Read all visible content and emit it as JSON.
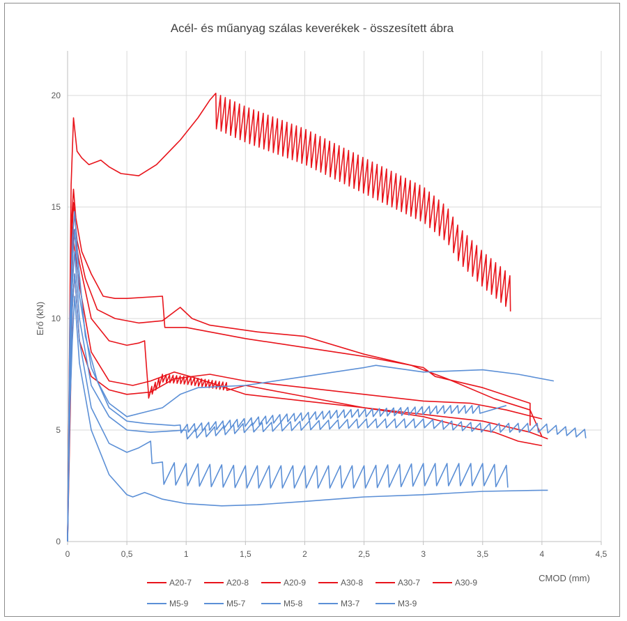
{
  "chart_data": {
    "type": "line",
    "title": "Acél- és műanyag szálas keverékek - összesített ábra",
    "xlabel": "CMOD (mm)",
    "ylabel": "Erő (kN)",
    "xlim": [
      0,
      4.5
    ],
    "ylim": [
      0,
      22
    ],
    "x_ticks": [
      "0",
      "0,5",
      "1",
      "1,5",
      "2",
      "2,5",
      "3",
      "3,5",
      "4",
      "4,5"
    ],
    "x_tick_values": [
      0,
      0.5,
      1,
      1.5,
      2,
      2.5,
      3,
      3.5,
      4,
      4.5
    ],
    "y_ticks": [
      "0",
      "5",
      "10",
      "15",
      "20"
    ],
    "y_tick_values": [
      0,
      5,
      10,
      15,
      20
    ],
    "grid": true,
    "legend_position": "bottom",
    "colors": {
      "steel": "#e8141b",
      "plastic": "#5b8fd6"
    },
    "series": [
      {
        "name": "A20-7",
        "color": "#e8141b",
        "saw": {
          "from": 1.25,
          "to": 3.75,
          "step": 0.04,
          "drop": 1.6
        },
        "points": [
          [
            0,
            0
          ],
          [
            0.03,
            16
          ],
          [
            0.05,
            19
          ],
          [
            0.08,
            17.5
          ],
          [
            0.12,
            17.2
          ],
          [
            0.18,
            16.9
          ],
          [
            0.28,
            17.1
          ],
          [
            0.35,
            16.8
          ],
          [
            0.45,
            16.5
          ],
          [
            0.6,
            16.4
          ],
          [
            0.75,
            16.9
          ],
          [
            0.95,
            18
          ],
          [
            1.1,
            19
          ],
          [
            1.2,
            19.8
          ],
          [
            1.25,
            20.1
          ],
          [
            1.5,
            19.5
          ],
          [
            2,
            18.5
          ],
          [
            2.5,
            17.2
          ],
          [
            3,
            15.9
          ],
          [
            3.2,
            15
          ],
          [
            3.3,
            14.1
          ],
          [
            3.5,
            13
          ],
          [
            3.7,
            12.1
          ],
          [
            3.75,
            11.8
          ]
        ]
      },
      {
        "name": "A20-8",
        "color": "#e8141b",
        "points": [
          [
            0,
            0
          ],
          [
            0.03,
            14
          ],
          [
            0.05,
            15.8
          ],
          [
            0.07,
            14.5
          ],
          [
            0.12,
            13
          ],
          [
            0.2,
            12
          ],
          [
            0.3,
            11
          ],
          [
            0.4,
            10.9
          ],
          [
            0.5,
            10.9
          ],
          [
            0.8,
            11
          ],
          [
            0.82,
            9.6
          ],
          [
            1,
            9.6
          ],
          [
            1.5,
            9.1
          ],
          [
            2,
            8.7
          ],
          [
            2.5,
            8.3
          ],
          [
            3,
            7.8
          ],
          [
            3.1,
            7.4
          ],
          [
            3.5,
            6.9
          ],
          [
            3.9,
            6.2
          ],
          [
            3.9,
            5.2
          ]
        ]
      },
      {
        "name": "A20-9",
        "color": "#e8141b",
        "points": [
          [
            0,
            0
          ],
          [
            0.03,
            13
          ],
          [
            0.05,
            15.2
          ],
          [
            0.08,
            13.5
          ],
          [
            0.15,
            11.8
          ],
          [
            0.25,
            10.4
          ],
          [
            0.4,
            10
          ],
          [
            0.6,
            9.8
          ],
          [
            0.8,
            9.9
          ],
          [
            0.95,
            10.5
          ],
          [
            1.05,
            10
          ],
          [
            1.2,
            9.7
          ],
          [
            1.6,
            9.4
          ],
          [
            2,
            9.2
          ],
          [
            2.5,
            8.4
          ],
          [
            2.9,
            7.9
          ],
          [
            3.2,
            7.3
          ],
          [
            3.6,
            6.4
          ],
          [
            3.9,
            5.9
          ],
          [
            4,
            4.7
          ]
        ]
      },
      {
        "name": "A30-8",
        "color": "#e8141b",
        "saw": {
          "from": 0.65,
          "to": 1.35,
          "step": 0.03,
          "drop": 0.35
        },
        "points": [
          [
            0,
            0
          ],
          [
            0.03,
            12
          ],
          [
            0.05,
            14
          ],
          [
            0.1,
            12.5
          ],
          [
            0.2,
            10
          ],
          [
            0.35,
            9
          ],
          [
            0.5,
            8.8
          ],
          [
            0.6,
            8.9
          ],
          [
            0.65,
            9
          ],
          [
            0.65,
            6.6
          ],
          [
            0.8,
            7.5
          ],
          [
            1,
            7.4
          ],
          [
            1.5,
            7
          ],
          [
            2,
            6.5
          ],
          [
            2.5,
            6
          ],
          [
            3,
            5.6
          ],
          [
            3.3,
            5.2
          ],
          [
            3.6,
            4.9
          ],
          [
            3.8,
            4.5
          ],
          [
            4,
            4.3
          ]
        ]
      },
      {
        "name": "A30-7",
        "color": "#e8141b",
        "points": [
          [
            0,
            0
          ],
          [
            0.03,
            11
          ],
          [
            0.05,
            13.5
          ],
          [
            0.1,
            11.5
          ],
          [
            0.2,
            8.5
          ],
          [
            0.35,
            7.2
          ],
          [
            0.55,
            7
          ],
          [
            0.7,
            7.2
          ],
          [
            0.9,
            7.6
          ],
          [
            1.1,
            7.3
          ],
          [
            1.5,
            6.6
          ],
          [
            2,
            6.3
          ],
          [
            2.5,
            6
          ],
          [
            3,
            5.7
          ],
          [
            3.5,
            5.4
          ],
          [
            3.9,
            4.9
          ],
          [
            4.05,
            4.6
          ]
        ]
      },
      {
        "name": "A30-9",
        "color": "#e8141b",
        "points": [
          [
            0,
            0
          ],
          [
            0.04,
            10.5
          ],
          [
            0.06,
            12
          ],
          [
            0.1,
            9
          ],
          [
            0.2,
            7.4
          ],
          [
            0.35,
            6.8
          ],
          [
            0.5,
            6.6
          ],
          [
            0.7,
            6.7
          ],
          [
            0.9,
            7.3
          ],
          [
            1.2,
            7.5
          ],
          [
            1.5,
            7.2
          ],
          [
            2,
            6.9
          ],
          [
            2.5,
            6.6
          ],
          [
            3,
            6.3
          ],
          [
            3.4,
            6.2
          ],
          [
            3.7,
            5.9
          ],
          [
            4,
            5.5
          ]
        ]
      },
      {
        "name": "M5-9",
        "color": "#5b8fd6",
        "points": [
          [
            0,
            0
          ],
          [
            0.02,
            10
          ],
          [
            0.04,
            13.5
          ],
          [
            0.06,
            14.8
          ],
          [
            0.09,
            12.5
          ],
          [
            0.15,
            9.2
          ],
          [
            0.25,
            7.2
          ],
          [
            0.35,
            6.2
          ],
          [
            0.5,
            5.6
          ],
          [
            0.65,
            5.8
          ],
          [
            0.8,
            6
          ],
          [
            0.95,
            6.6
          ],
          [
            1.1,
            6.9
          ],
          [
            1.5,
            7
          ],
          [
            2,
            7.4
          ],
          [
            2.5,
            7.8
          ],
          [
            2.6,
            7.9
          ],
          [
            3,
            7.6
          ],
          [
            3.5,
            7.7
          ],
          [
            3.8,
            7.5
          ],
          [
            4.1,
            7.2
          ]
        ]
      },
      {
        "name": "M5-7",
        "color": "#5b8fd6",
        "saw": {
          "from": 0.95,
          "to": 3.5,
          "step": 0.06,
          "drop": 0.35
        },
        "points": [
          [
            0,
            0
          ],
          [
            0.02,
            9
          ],
          [
            0.04,
            12.5
          ],
          [
            0.06,
            14
          ],
          [
            0.1,
            11
          ],
          [
            0.2,
            7.8
          ],
          [
            0.35,
            6
          ],
          [
            0.5,
            5.4
          ],
          [
            0.65,
            5.3
          ],
          [
            0.9,
            5.2
          ],
          [
            1.3,
            5.4
          ],
          [
            1.8,
            5.7
          ],
          [
            2.3,
            5.9
          ],
          [
            2.8,
            6
          ],
          [
            3.2,
            6.1
          ],
          [
            3.7,
            6.1
          ]
        ]
      },
      {
        "name": "M5-8",
        "color": "#5b8fd6",
        "saw": {
          "from": 1.0,
          "to": 4.4,
          "step": 0.08,
          "drop": 0.4
        },
        "points": [
          [
            0,
            0
          ],
          [
            0.02,
            8
          ],
          [
            0.04,
            11.5
          ],
          [
            0.06,
            13
          ],
          [
            0.1,
            10
          ],
          [
            0.2,
            7
          ],
          [
            0.35,
            5.6
          ],
          [
            0.5,
            5
          ],
          [
            0.7,
            4.9
          ],
          [
            1,
            5
          ],
          [
            1.5,
            5.3
          ],
          [
            2,
            5.4
          ],
          [
            2.5,
            5.5
          ],
          [
            3,
            5.5
          ],
          [
            3.5,
            5.3
          ],
          [
            4,
            5.3
          ],
          [
            4.4,
            5
          ]
        ]
      },
      {
        "name": "M3-7",
        "color": "#5b8fd6",
        "saw": {
          "from": 0.7,
          "to": 3.75,
          "step": 0.1,
          "drop": 1.0
        },
        "points": [
          [
            0,
            0
          ],
          [
            0.02,
            7
          ],
          [
            0.04,
            10.5
          ],
          [
            0.06,
            12
          ],
          [
            0.1,
            9
          ],
          [
            0.2,
            6
          ],
          [
            0.35,
            4.4
          ],
          [
            0.5,
            4
          ],
          [
            0.6,
            4.2
          ],
          [
            0.7,
            4.5
          ],
          [
            0.7,
            3.6
          ],
          [
            1,
            3.5
          ],
          [
            1.5,
            3.4
          ],
          [
            2,
            3.4
          ],
          [
            2.5,
            3.4
          ],
          [
            3,
            3.5
          ],
          [
            3.5,
            3.5
          ],
          [
            3.75,
            3.4
          ]
        ]
      },
      {
        "name": "M3-9",
        "color": "#5b8fd6",
        "points": [
          [
            0,
            0
          ],
          [
            0.02,
            6
          ],
          [
            0.04,
            9
          ],
          [
            0.06,
            11
          ],
          [
            0.1,
            8
          ],
          [
            0.2,
            5
          ],
          [
            0.35,
            3
          ],
          [
            0.5,
            2.1
          ],
          [
            0.55,
            2
          ],
          [
            0.65,
            2.2
          ],
          [
            0.7,
            2.1
          ],
          [
            0.8,
            1.9
          ],
          [
            1,
            1.7
          ],
          [
            1.3,
            1.6
          ],
          [
            1.6,
            1.65
          ],
          [
            2,
            1.8
          ],
          [
            2.5,
            2
          ],
          [
            3,
            2.1
          ],
          [
            3.5,
            2.25
          ],
          [
            4,
            2.3
          ],
          [
            4.05,
            2.3
          ]
        ]
      }
    ]
  }
}
